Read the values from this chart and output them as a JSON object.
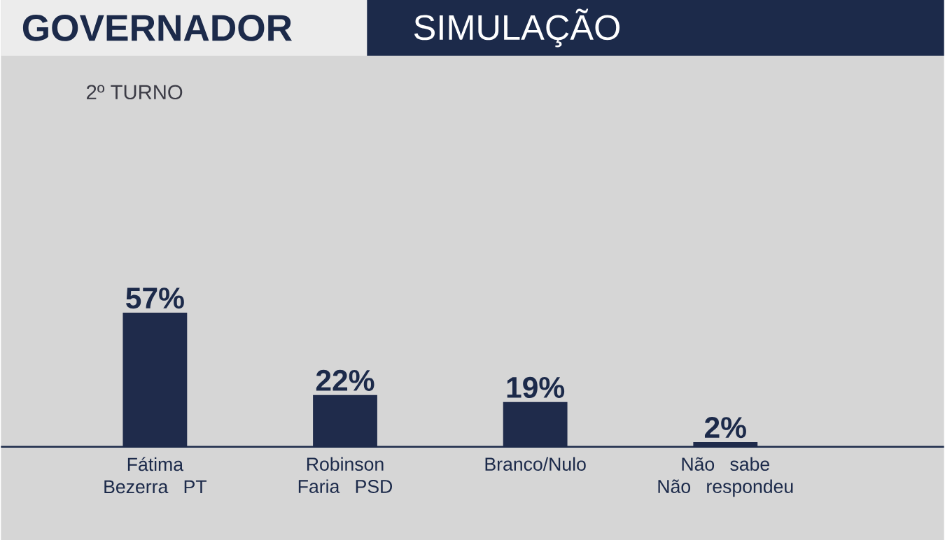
{
  "chart_data": {
    "type": "bar",
    "title": "GOVERNADOR",
    "subtitle": "SIMULAÇÃO",
    "annotations": [
      "2º TURNO"
    ],
    "categories": [
      "Fátima Bezerra PT",
      "Robinson Faria PSD",
      "Branco/Nulo",
      "Não sabe Não respondeu"
    ],
    "values": [
      57,
      22,
      19,
      2
    ],
    "value_labels": [
      "57%",
      "22%",
      "19%",
      "2%"
    ],
    "color": "#1f2b4b"
  }
}
